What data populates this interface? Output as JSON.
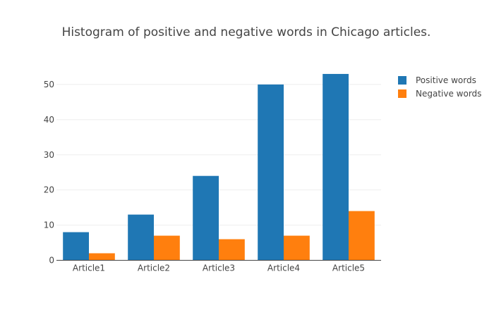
{
  "chart_data": {
    "type": "bar",
    "title": "Histogram of positive and negative words in Chicago articles.",
    "xlabel": "",
    "ylabel": "",
    "categories": [
      "Article1",
      "Article2",
      "Article3",
      "Article4",
      "Article5"
    ],
    "series": [
      {
        "name": "Positive words",
        "values": [
          8,
          13,
          24,
          50,
          53
        ],
        "color": "#1f77b4"
      },
      {
        "name": "Negative words",
        "values": [
          2,
          7,
          6,
          7,
          14
        ],
        "color": "#ff7f0e"
      }
    ],
    "ylim": [
      0,
      58
    ],
    "yticks": [
      "0",
      "10",
      "20",
      "30",
      "40",
      "50"
    ],
    "grid": true,
    "legend": "top-right"
  }
}
